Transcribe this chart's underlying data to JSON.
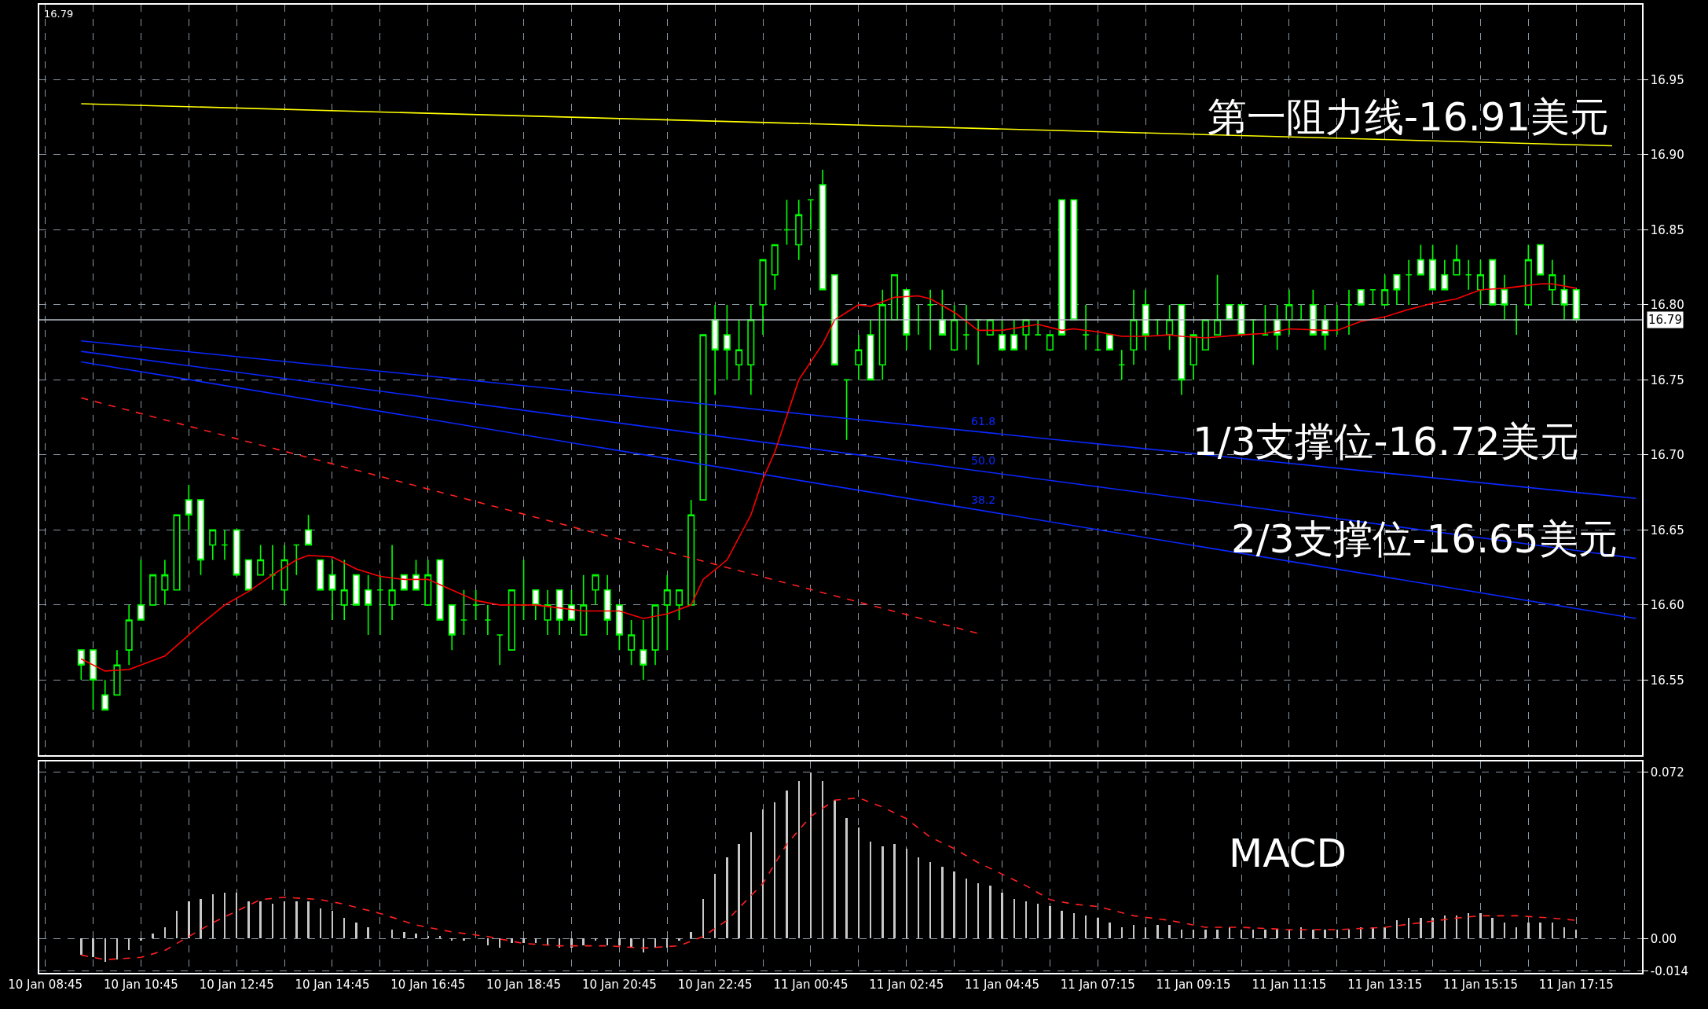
{
  "chart_data": [
    {
      "type": "candlestick",
      "color": "#00ff00",
      "categories": [
        null,
        null,
        null,
        null,
        null,
        null,
        null,
        null,
        null,
        null,
        null,
        null,
        null,
        null,
        null,
        null,
        null,
        null,
        null,
        null,
        null,
        null,
        null,
        null,
        null,
        null,
        null,
        null,
        null,
        null,
        null,
        null,
        null,
        null,
        null,
        null,
        null,
        null,
        null,
        null,
        null,
        null,
        null,
        null,
        null,
        null,
        null,
        null,
        null,
        null,
        null,
        null,
        null,
        null,
        null,
        null,
        null,
        null,
        null,
        null,
        null,
        null,
        null,
        null,
        null,
        null,
        null,
        null,
        null,
        null,
        null,
        null,
        null,
        null,
        null,
        null,
        null,
        null,
        null,
        null,
        null,
        null,
        null,
        null,
        null,
        null,
        null,
        null,
        null,
        null,
        null,
        null,
        null,
        null,
        null,
        null,
        null,
        null,
        null,
        null,
        null,
        null,
        null,
        null,
        null,
        null,
        null,
        null,
        null,
        null,
        null,
        null,
        null,
        null,
        null,
        null,
        null,
        null,
        null,
        null,
        null,
        null,
        null,
        null,
        null,
        null,
        null,
        null,
        null,
        null,
        null,
        null,
        null,
        null
      ],
      "ohlc": [
        null,
        null,
        null,
        [
          16.57,
          16.57,
          16.55,
          16.56
        ],
        [
          16.57,
          16.57,
          16.53,
          16.55
        ],
        [
          16.54,
          16.55,
          16.53,
          16.53
        ],
        [
          16.54,
          16.57,
          16.54,
          16.56
        ],
        [
          16.57,
          16.6,
          16.56,
          16.59
        ],
        [
          16.6,
          16.63,
          16.59,
          16.59
        ],
        [
          16.6,
          16.62,
          16.6,
          16.62
        ],
        [
          16.61,
          16.63,
          16.6,
          16.62
        ],
        [
          16.61,
          16.66,
          16.61,
          16.66
        ],
        [
          16.67,
          16.68,
          16.65,
          16.66
        ],
        [
          16.67,
          16.67,
          16.62,
          16.63
        ],
        [
          16.64,
          16.65,
          16.63,
          16.65
        ],
        [
          16.64,
          16.65,
          16.63,
          16.64
        ],
        [
          16.65,
          16.65,
          16.62,
          16.62
        ],
        [
          16.63,
          16.63,
          16.61,
          16.61
        ],
        [
          16.62,
          16.64,
          16.62,
          16.63
        ],
        [
          16.62,
          16.64,
          16.61,
          16.62
        ],
        [
          16.61,
          16.64,
          16.6,
          16.63
        ],
        [
          16.64,
          16.64,
          16.62,
          16.64
        ],
        [
          16.65,
          16.66,
          16.64,
          16.64
        ],
        [
          16.63,
          16.63,
          16.61,
          16.61
        ],
        [
          16.62,
          16.63,
          16.59,
          16.61
        ],
        [
          16.6,
          16.63,
          16.59,
          16.61
        ],
        [
          16.62,
          16.62,
          16.6,
          16.6
        ],
        [
          16.61,
          16.62,
          16.58,
          16.6
        ],
        [
          16.61,
          16.62,
          16.58,
          16.61
        ],
        [
          16.6,
          16.64,
          16.59,
          16.61
        ],
        [
          16.62,
          16.62,
          16.61,
          16.61
        ],
        [
          16.62,
          16.63,
          16.61,
          16.61
        ],
        [
          16.6,
          16.63,
          16.6,
          16.62
        ],
        [
          16.63,
          16.63,
          16.59,
          16.59
        ],
        [
          16.6,
          16.6,
          16.57,
          16.58
        ],
        [
          16.59,
          16.61,
          16.58,
          16.59
        ],
        [
          16.6,
          16.61,
          16.59,
          16.6
        ],
        [
          16.59,
          16.6,
          16.58,
          16.59
        ],
        [
          16.58,
          16.58,
          16.56,
          16.58
        ],
        [
          16.57,
          16.61,
          16.57,
          16.61
        ],
        [
          16.6,
          16.63,
          16.59,
          16.6
        ],
        [
          16.61,
          16.61,
          16.59,
          16.6
        ],
        [
          16.59,
          16.61,
          16.58,
          16.6
        ],
        [
          16.61,
          16.61,
          16.58,
          16.59
        ],
        [
          16.6,
          16.61,
          16.59,
          16.59
        ],
        [
          16.58,
          16.62,
          16.58,
          16.6
        ],
        [
          16.61,
          16.62,
          16.6,
          16.62
        ],
        [
          16.61,
          16.62,
          16.58,
          16.59
        ],
        [
          16.6,
          16.6,
          16.57,
          16.58
        ],
        [
          16.57,
          16.59,
          16.56,
          16.58
        ],
        [
          16.57,
          16.59,
          16.55,
          16.56
        ],
        [
          16.57,
          16.6,
          16.56,
          16.6
        ],
        [
          16.6,
          16.62,
          16.57,
          16.61
        ],
        [
          16.6,
          16.61,
          16.59,
          16.61
        ],
        [
          16.6,
          16.67,
          16.6,
          16.66
        ],
        [
          16.67,
          16.78,
          16.67,
          16.78
        ],
        [
          16.79,
          16.8,
          16.74,
          16.77
        ],
        [
          16.78,
          16.8,
          16.75,
          16.77
        ],
        [
          16.76,
          16.79,
          16.75,
          16.77
        ],
        [
          16.76,
          16.8,
          16.74,
          16.79
        ],
        [
          16.8,
          16.83,
          16.78,
          16.83
        ],
        [
          16.82,
          16.84,
          16.81,
          16.84
        ],
        [
          16.85,
          16.87,
          16.84,
          16.85
        ],
        [
          16.84,
          16.87,
          16.83,
          16.86
        ],
        [
          16.87,
          16.87,
          16.85,
          16.87
        ],
        [
          16.88,
          16.89,
          16.81,
          16.81
        ],
        [
          16.82,
          16.82,
          16.76,
          16.76
        ],
        [
          16.75,
          16.75,
          16.71,
          16.75
        ],
        [
          16.76,
          16.78,
          16.75,
          16.77
        ],
        [
          16.78,
          16.79,
          16.75,
          16.75
        ],
        [
          16.76,
          16.81,
          16.75,
          16.8
        ],
        [
          16.79,
          16.82,
          16.79,
          16.82
        ],
        [
          16.81,
          16.81,
          16.77,
          16.78
        ],
        [
          16.79,
          16.8,
          16.78,
          16.79
        ],
        [
          16.8,
          16.81,
          16.77,
          16.8
        ],
        [
          16.79,
          16.81,
          16.78,
          16.78
        ],
        [
          16.77,
          16.8,
          16.77,
          16.79
        ],
        [
          16.78,
          16.8,
          16.77,
          16.78
        ],
        [
          16.79,
          16.79,
          16.76,
          16.79
        ],
        [
          16.78,
          16.79,
          16.78,
          16.79
        ],
        [
          16.78,
          16.79,
          16.77,
          16.77
        ],
        [
          16.78,
          16.79,
          16.77,
          16.77
        ],
        [
          16.78,
          16.79,
          16.77,
          16.79
        ],
        [
          16.78,
          16.79,
          16.78,
          16.78
        ],
        [
          16.77,
          16.78,
          16.77,
          16.78
        ],
        [
          16.87,
          16.87,
          16.78,
          16.78
        ],
        [
          16.87,
          16.87,
          16.79,
          16.79
        ],
        [
          16.78,
          16.8,
          16.77,
          16.78
        ],
        [
          16.77,
          16.78,
          16.77,
          16.77
        ],
        [
          16.78,
          16.78,
          16.77,
          16.77
        ],
        [
          16.76,
          16.77,
          16.75,
          16.76
        ],
        [
          16.77,
          16.81,
          16.76,
          16.79
        ],
        [
          16.8,
          16.81,
          16.77,
          16.78
        ],
        [
          16.79,
          16.79,
          16.78,
          16.79
        ],
        [
          16.78,
          16.8,
          16.77,
          16.79
        ],
        [
          16.8,
          16.8,
          16.74,
          16.75
        ],
        [
          16.76,
          16.78,
          16.75,
          16.78
        ],
        [
          16.77,
          16.79,
          16.77,
          16.79
        ],
        [
          16.78,
          16.82,
          16.78,
          16.79
        ],
        [
          16.8,
          16.8,
          16.79,
          16.79
        ],
        [
          16.8,
          16.8,
          16.78,
          16.78
        ],
        [
          16.79,
          16.79,
          16.76,
          16.79
        ],
        [
          16.78,
          16.8,
          16.78,
          16.78
        ],
        [
          16.79,
          16.8,
          16.77,
          16.78
        ],
        [
          16.79,
          16.81,
          16.78,
          16.8
        ],
        [
          16.79,
          16.8,
          16.79,
          16.79
        ],
        [
          16.8,
          16.81,
          16.78,
          16.78
        ],
        [
          16.79,
          16.8,
          16.77,
          16.78
        ],
        [
          16.79,
          16.8,
          16.78,
          16.79
        ],
        [
          16.8,
          16.81,
          16.78,
          16.8
        ],
        [
          16.81,
          16.81,
          16.8,
          16.8
        ],
        [
          16.81,
          16.81,
          16.8,
          16.81
        ],
        [
          16.8,
          16.82,
          16.8,
          16.81
        ],
        [
          16.82,
          16.82,
          16.8,
          16.81
        ],
        [
          16.82,
          16.83,
          16.8,
          16.82
        ],
        [
          16.83,
          16.84,
          16.82,
          16.82
        ],
        [
          16.83,
          16.84,
          16.81,
          16.81
        ],
        [
          16.82,
          16.83,
          16.81,
          16.81
        ],
        [
          16.82,
          16.84,
          16.82,
          16.83
        ],
        [
          16.82,
          16.83,
          16.81,
          16.82
        ],
        [
          16.81,
          16.83,
          16.8,
          16.82
        ],
        [
          16.83,
          16.83,
          16.8,
          16.8
        ],
        [
          16.81,
          16.82,
          16.79,
          16.8
        ],
        [
          16.79,
          16.8,
          16.78,
          16.79
        ],
        [
          16.8,
          16.84,
          16.8,
          16.83
        ],
        [
          16.84,
          16.84,
          16.82,
          16.82
        ],
        [
          16.81,
          16.83,
          16.8,
          16.82
        ],
        [
          16.81,
          16.82,
          16.79,
          16.8
        ],
        [
          16.81,
          16.81,
          16.79,
          16.79
        ],
        null,
        null,
        null,
        null,
        null
      ],
      "series": [
        {
          "type": "line",
          "color": "#ffff00",
          "values": [
            null,
            null,
            null,
            16.934,
            null,
            null,
            null,
            null,
            null,
            null,
            null,
            null,
            null,
            null,
            null,
            null,
            null,
            null,
            null,
            null,
            null,
            null,
            null,
            null,
            null,
            null,
            null,
            null,
            null,
            null,
            null,
            null,
            null,
            null,
            null,
            null,
            null,
            null,
            null,
            null,
            null,
            null,
            null,
            null,
            null,
            null,
            null,
            null,
            null,
            null,
            null,
            null,
            null,
            null,
            null,
            null,
            null,
            null,
            null,
            null,
            null,
            null,
            null,
            null,
            null,
            null,
            null,
            null,
            null,
            null,
            null,
            null,
            null,
            null,
            null,
            null,
            null,
            null,
            null,
            null,
            null,
            null,
            null,
            null,
            null,
            null,
            null,
            null,
            null,
            null,
            null,
            null,
            null,
            null,
            null,
            null,
            null,
            null,
            null,
            null,
            null,
            null,
            null,
            null,
            null,
            null,
            null,
            null,
            null,
            null,
            null,
            null,
            null,
            null,
            null,
            null,
            null,
            null,
            null,
            null,
            null,
            null,
            null,
            null,
            null,
            null,
            null,
            null,
            null,
            null,
            null,
            16.906,
            null,
            null
          ]
        },
        {
          "type": "line",
          "color": "#0a28ff",
          "name": "61.8",
          "values": [
            null,
            null,
            null,
            16.776,
            null,
            null,
            null,
            null,
            null,
            null,
            null,
            null,
            null,
            null,
            null,
            null,
            null,
            null,
            null,
            null,
            null,
            null,
            null,
            null,
            null,
            null,
            null,
            null,
            null,
            null,
            null,
            null,
            null,
            null,
            null,
            null,
            null,
            null,
            null,
            null,
            null,
            null,
            null,
            null,
            null,
            null,
            null,
            null,
            null,
            null,
            null,
            null,
            null,
            null,
            null,
            null,
            null,
            null,
            null,
            null,
            null,
            null,
            null,
            null,
            null,
            null,
            null,
            null,
            null,
            null,
            null,
            null,
            null,
            null,
            null,
            null,
            null,
            null,
            null,
            null,
            null,
            null,
            null,
            null,
            null,
            null,
            null,
            null,
            null,
            null,
            null,
            null,
            null,
            null,
            null,
            null,
            null,
            null,
            null,
            null,
            null,
            null,
            null,
            null,
            null,
            null,
            null,
            null,
            null,
            null,
            null,
            null,
            null,
            null,
            null,
            null,
            null,
            null,
            null,
            null,
            null,
            null,
            null,
            null,
            null,
            null,
            null,
            null,
            null,
            null,
            null,
            null,
            null,
            16.671
          ]
        },
        {
          "type": "line",
          "color": "#0a28ff",
          "name": "50.0",
          "values": [
            null,
            null,
            null,
            16.769,
            null,
            null,
            null,
            null,
            null,
            null,
            null,
            null,
            null,
            null,
            null,
            null,
            null,
            null,
            null,
            null,
            null,
            null,
            null,
            null,
            null,
            null,
            null,
            null,
            null,
            null,
            null,
            null,
            null,
            null,
            null,
            null,
            null,
            null,
            null,
            null,
            null,
            null,
            null,
            null,
            null,
            null,
            null,
            null,
            null,
            null,
            null,
            null,
            null,
            null,
            null,
            null,
            null,
            null,
            null,
            null,
            null,
            null,
            null,
            null,
            null,
            null,
            null,
            null,
            null,
            null,
            null,
            null,
            null,
            null,
            null,
            null,
            null,
            null,
            null,
            null,
            null,
            null,
            null,
            null,
            null,
            null,
            null,
            null,
            null,
            null,
            null,
            null,
            null,
            null,
            null,
            null,
            null,
            null,
            null,
            null,
            null,
            null,
            null,
            null,
            null,
            null,
            null,
            null,
            null,
            null,
            null,
            null,
            null,
            null,
            null,
            null,
            null,
            null,
            null,
            null,
            null,
            null,
            null,
            null,
            null,
            null,
            null,
            null,
            null,
            null,
            null,
            null,
            null,
            16.631
          ]
        },
        {
          "type": "line",
          "color": "#0a28ff",
          "name": "38.2",
          "values": [
            null,
            null,
            null,
            16.762,
            null,
            null,
            null,
            null,
            null,
            null,
            null,
            null,
            null,
            null,
            null,
            null,
            null,
            null,
            null,
            null,
            null,
            null,
            null,
            null,
            null,
            null,
            null,
            null,
            null,
            null,
            null,
            null,
            null,
            null,
            null,
            null,
            null,
            null,
            null,
            null,
            null,
            null,
            null,
            null,
            null,
            null,
            null,
            null,
            null,
            null,
            null,
            null,
            null,
            null,
            null,
            null,
            null,
            null,
            null,
            null,
            null,
            null,
            null,
            null,
            null,
            null,
            null,
            null,
            null,
            null,
            null,
            null,
            null,
            null,
            null,
            null,
            null,
            null,
            null,
            null,
            null,
            null,
            null,
            null,
            null,
            null,
            null,
            null,
            null,
            null,
            null,
            null,
            null,
            null,
            null,
            null,
            null,
            null,
            null,
            null,
            null,
            null,
            null,
            null,
            null,
            null,
            null,
            null,
            null,
            null,
            null,
            null,
            null,
            null,
            null,
            null,
            null,
            null,
            null,
            null,
            null,
            null,
            null,
            null,
            null,
            null,
            null,
            null,
            null,
            null,
            null,
            null,
            null,
            16.591
          ]
        },
        {
          "type": "line",
          "color": "#ff2020",
          "line_style": "dashed",
          "values": [
            null,
            null,
            null,
            16.738,
            null,
            null,
            null,
            null,
            null,
            null,
            null,
            null,
            null,
            null,
            null,
            null,
            null,
            null,
            null,
            null,
            null,
            null,
            null,
            null,
            null,
            null,
            null,
            null,
            null,
            null,
            null,
            null,
            null,
            null,
            null,
            null,
            null,
            null,
            null,
            null,
            null,
            null,
            null,
            null,
            null,
            null,
            null,
            null,
            null,
            null,
            null,
            null,
            null,
            null,
            null,
            null,
            null,
            null,
            null,
            null,
            null,
            null,
            null,
            null,
            null,
            null,
            null,
            null,
            null,
            null,
            null,
            null,
            null,
            null,
            null,
            null,
            null,
            null,
            16.581,
            null,
            null,
            null,
            null,
            null,
            null,
            null,
            null,
            null,
            null,
            null,
            null,
            null,
            null,
            null,
            null,
            null,
            null,
            null,
            null,
            null,
            null,
            null,
            null,
            null,
            null,
            null,
            null,
            null,
            null,
            null,
            null,
            null,
            null,
            null,
            null,
            null,
            null,
            null,
            null,
            null,
            null,
            null,
            null,
            null,
            null,
            null,
            null,
            null,
            null,
            null,
            null,
            null,
            null,
            null
          ]
        },
        {
          "type": "line",
          "color": "#ff0000",
          "values": [
            null,
            null,
            null,
            16.564,
            null,
            16.556,
            null,
            16.557,
            null,
            null,
            16.566,
            null,
            null,
            16.587,
            null,
            16.6,
            null,
            16.609,
            null,
            16.62,
            null,
            16.63,
            16.633,
            null,
            16.632,
            null,
            16.624,
            null,
            16.619,
            null,
            16.617,
            null,
            16.617,
            null,
            16.61,
            null,
            16.603,
            null,
            16.6,
            null,
            null,
            16.6,
            null,
            16.598,
            null,
            16.596,
            null,
            null,
            16.596,
            null,
            16.591,
            null,
            16.594,
            null,
            16.6,
            16.617,
            null,
            16.63,
            null,
            16.66,
            16.684,
            16.702,
            null,
            16.75,
            null,
            16.774,
            16.79,
            null,
            16.8,
            16.799,
            null,
            16.805,
            null,
            16.806,
            16.804,
            null,
            16.795,
            null,
            16.783,
            null,
            16.783,
            null,
            null,
            16.787,
            null,
            16.783,
            16.784,
            null,
            16.782,
            null,
            16.779,
            null,
            16.779,
            null,
            16.78,
            16.779,
            null,
            16.778,
            null,
            null,
            16.78,
            null,
            16.781,
            null,
            16.784,
            null,
            null,
            16.783,
            16.783,
            null,
            16.789,
            null,
            16.792,
            null,
            16.797,
            null,
            16.801,
            null,
            16.804,
            null,
            16.81,
            null,
            16.811,
            null,
            16.813,
            16.814,
            16.814,
            null,
            16.811,
            null,
            null,
            null,
            null,
            null
          ]
        }
      ],
      "ylim": [
        16.5,
        17.0
      ],
      "yticks": [
        {
          "value": 16.55,
          "label": "16.55"
        },
        {
          "value": 16.6,
          "label": "16.60"
        },
        {
          "value": 16.65,
          "label": "16.65"
        },
        {
          "value": 16.7,
          "label": "16.70"
        },
        {
          "value": 16.75,
          "label": "16.75"
        },
        {
          "value": 16.8,
          "label": "16.80"
        },
        {
          "value": 16.85,
          "label": "16.85"
        },
        {
          "value": 16.9,
          "label": "16.90"
        },
        {
          "value": 16.95,
          "label": "16.95"
        }
      ],
      "grid": true,
      "tick_labels": "y",
      "ref_lines": [
        {
          "axis": "y",
          "value": 16.79,
          "label": "16.79",
          "color": "#b4bcc4"
        }
      ],
      "annotations": [
        "16.79",
        "第一阻力线-16.91美元",
        "1/3支撑位-16.72美元",
        "2/3支撑位-16.65美元"
      ]
    },
    {
      "type": "bar",
      "color": "#c8c8c8",
      "categories": [
        "10 Jan 08:45",
        null,
        null,
        null,
        null,
        null,
        null,
        null,
        "10 Jan 10:45",
        null,
        null,
        null,
        null,
        null,
        null,
        null,
        "10 Jan 12:45",
        null,
        null,
        null,
        null,
        null,
        null,
        null,
        "10 Jan 14:45",
        null,
        null,
        null,
        null,
        null,
        null,
        null,
        "10 Jan 16:45",
        null,
        null,
        null,
        null,
        null,
        null,
        null,
        "10 Jan 18:45",
        null,
        null,
        null,
        null,
        null,
        null,
        null,
        "10 Jan 20:45",
        null,
        null,
        null,
        null,
        null,
        null,
        null,
        "10 Jan 22:45",
        null,
        null,
        null,
        null,
        null,
        null,
        null,
        "11 Jan 00:45",
        null,
        null,
        null,
        null,
        null,
        null,
        null,
        "11 Jan 02:45",
        null,
        null,
        null,
        null,
        null,
        null,
        null,
        "11 Jan 04:45",
        null,
        null,
        null,
        null,
        null,
        null,
        null,
        "11 Jan 07:15",
        null,
        null,
        null,
        null,
        null,
        null,
        null,
        "11 Jan 09:15",
        null,
        null,
        null,
        null,
        null,
        null,
        null,
        "11 Jan 11:15",
        null,
        null,
        null,
        null,
        null,
        null,
        null,
        "11 Jan 13:15",
        null,
        null,
        null,
        null,
        null,
        null,
        null,
        "11 Jan 15:15",
        null,
        null,
        null,
        null,
        null,
        null,
        null,
        "11 Jan 17:15",
        null,
        null,
        null,
        null,
        null
      ],
      "values": [
        null,
        null,
        null,
        -0.007,
        -0.008,
        -0.01,
        -0.009,
        -0.005,
        -0.001,
        0.002,
        0.005,
        0.012,
        0.016,
        0.017,
        0.019,
        0.02,
        0.02,
        0.016,
        0.016,
        0.015,
        0.016,
        0.016,
        0.016,
        0.013,
        0.012,
        0.009,
        0.007,
        0.005,
        0.0,
        0.004,
        0.003,
        0.002,
        0.001,
        0.001,
        -0.001,
        -0.001,
        0.0,
        -0.003,
        -0.004,
        -0.002,
        -0.002,
        -0.002,
        -0.003,
        -0.004,
        -0.004,
        -0.003,
        -0.001,
        -0.003,
        -0.003,
        -0.004,
        -0.006,
        -0.004,
        -0.004,
        -0.001,
        0.003,
        0.017,
        0.028,
        0.035,
        0.041,
        0.046,
        0.056,
        0.059,
        0.064,
        0.068,
        0.072,
        0.068,
        0.06,
        0.052,
        0.048,
        0.042,
        0.04,
        0.041,
        0.039,
        0.035,
        0.033,
        0.031,
        0.029,
        0.026,
        0.024,
        0.023,
        0.02,
        0.017,
        0.016,
        0.015,
        0.014,
        0.012,
        0.011,
        0.01,
        0.009,
        0.007,
        0.005,
        0.006,
        0.005,
        0.006,
        0.006,
        0.004,
        0.004,
        0.004,
        0.004,
        0.005,
        0.004,
        0.004,
        0.004,
        0.004,
        0.004,
        0.005,
        0.004,
        0.004,
        0.004,
        0.004,
        0.005,
        0.005,
        0.005,
        0.008,
        0.009,
        0.009,
        0.009,
        0.01,
        0.01,
        0.011,
        0.011,
        0.009,
        0.007,
        0.005,
        0.007,
        0.007,
        0.007,
        0.005,
        0.004,
        null,
        null,
        null,
        null,
        null
      ],
      "series": [
        {
          "type": "line",
          "color": "#ff2020",
          "line_style": "dashed",
          "values": [
            null,
            null,
            null,
            -0.007,
            null,
            -0.009,
            null,
            null,
            -0.008,
            null,
            -0.005,
            null,
            0.001,
            null,
            0.007,
            null,
            0.012,
            null,
            0.017,
            null,
            0.018,
            null,
            null,
            0.017,
            null,
            0.015,
            null,
            null,
            0.011,
            null,
            null,
            0.006,
            null,
            null,
            0.003,
            null,
            null,
            0.001,
            null,
            null,
            -0.002,
            null,
            null,
            -0.003,
            null,
            null,
            null,
            -0.003,
            null,
            null,
            -0.004,
            null,
            null,
            -0.003,
            null,
            0.001,
            null,
            0.008,
            null,
            null,
            0.024,
            null,
            0.041,
            null,
            0.053,
            null,
            0.06,
            null,
            0.061,
            null,
            0.057,
            null,
            0.052,
            null,
            0.044,
            null,
            0.039,
            null,
            0.033,
            null,
            0.028,
            null,
            0.023,
            null,
            0.017,
            null,
            0.015,
            null,
            0.014,
            null,
            null,
            0.01,
            null,
            null,
            0.008,
            null,
            null,
            0.005,
            null,
            null,
            0.005,
            null,
            null,
            null,
            0.004,
            null,
            null,
            null,
            0.004,
            null,
            null,
            null,
            0.005,
            null,
            null,
            0.007,
            null,
            null,
            0.009,
            null,
            0.01,
            null,
            null,
            0.01,
            null,
            null,
            0.009,
            null,
            0.008,
            null,
            null,
            null,
            null,
            null
          ]
        }
      ],
      "ylim": [
        -0.0147,
        0.0766
      ],
      "yticks": [
        {
          "value": 0.072,
          "label": "0.072"
        },
        {
          "value": 0,
          "label": "0.00"
        },
        {
          "value": -0.014,
          "label": "-0.014"
        }
      ],
      "grid": true,
      "annotations": [
        "MACD"
      ]
    }
  ]
}
